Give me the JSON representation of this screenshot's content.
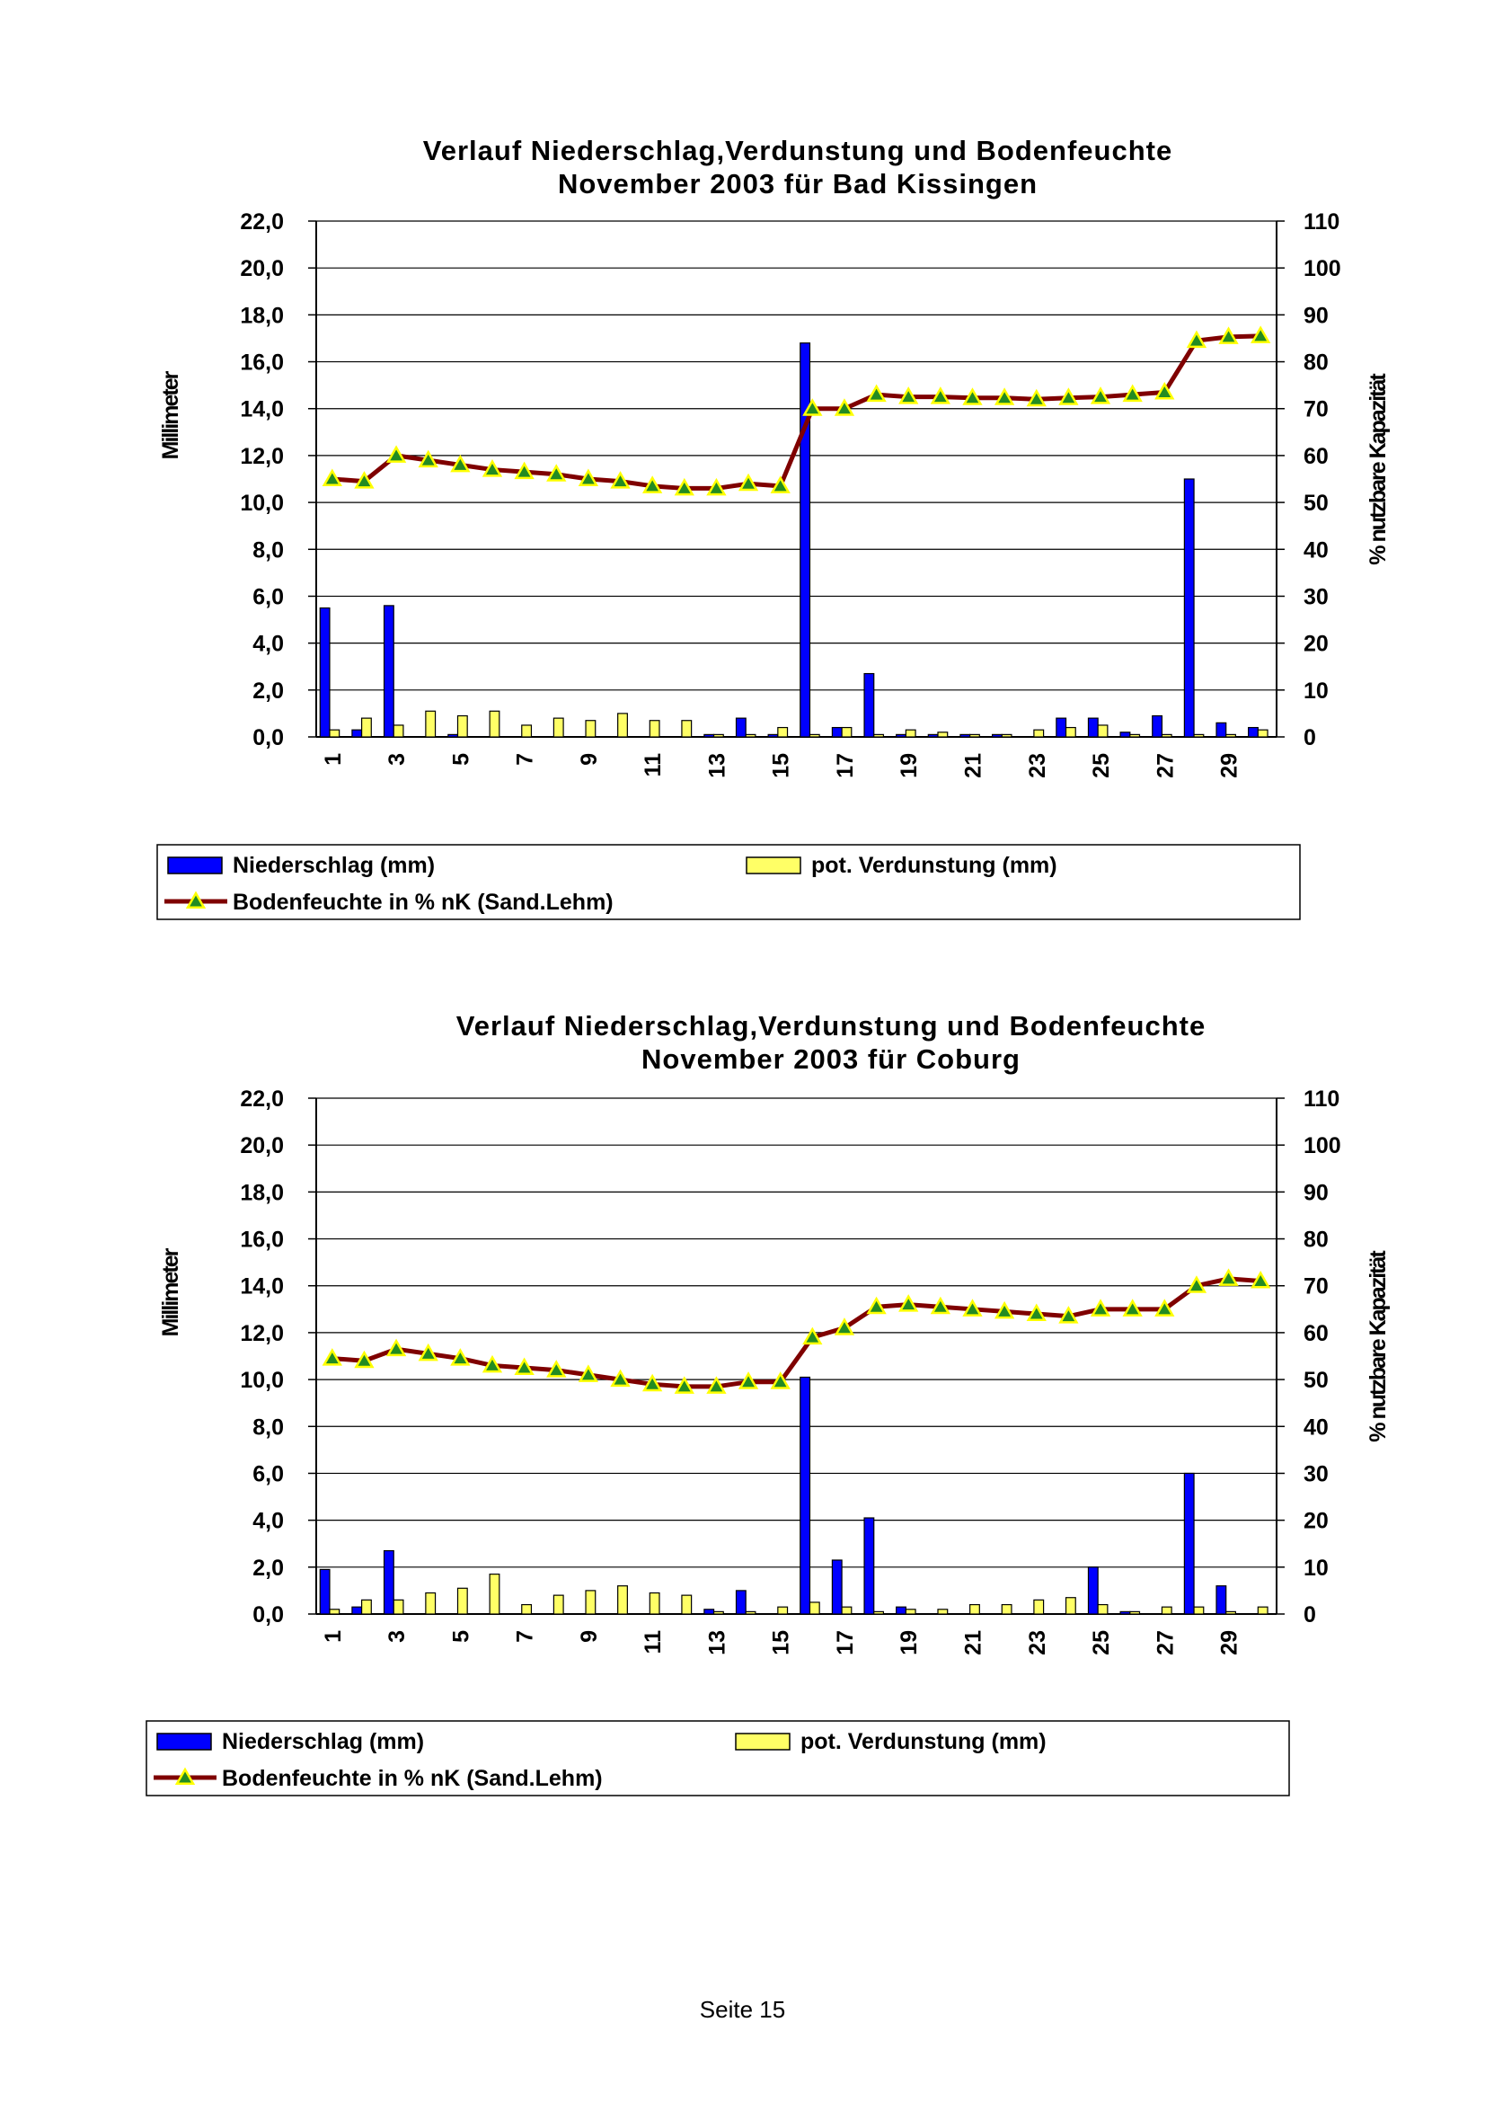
{
  "page": {
    "footer": "Seite 15"
  },
  "colors": {
    "precip": "#0000ff",
    "evap": "#ffff66",
    "moisture_line": "#7f0000",
    "marker_fill": "#228b22",
    "marker_edge": "#ffff00",
    "grid": "#000000"
  },
  "chart_data": [
    {
      "type": "bar",
      "title": [
        "Verlauf Niederschlag,Verdunstung und Bodenfeuchte",
        "November  2003 für Bad Kissingen"
      ],
      "ylabel": "Millimeter",
      "y2label": "% nutzbare Kapazität",
      "ylim": [
        0,
        22
      ],
      "y2lim": [
        0,
        110
      ],
      "yticks": [
        "0,0",
        "2,0",
        "4,0",
        "6,0",
        "8,0",
        "10,0",
        "12,0",
        "14,0",
        "16,0",
        "18,0",
        "20,0",
        "22,0"
      ],
      "y2ticks": [
        "0",
        "10",
        "20",
        "30",
        "40",
        "50",
        "60",
        "70",
        "80",
        "90",
        "100",
        "110"
      ],
      "grid": true,
      "legend_position": "bottom",
      "x": [
        1,
        2,
        3,
        4,
        5,
        6,
        7,
        8,
        9,
        10,
        11,
        12,
        13,
        14,
        15,
        16,
        17,
        18,
        19,
        20,
        21,
        22,
        23,
        24,
        25,
        26,
        27,
        28,
        29,
        30
      ],
      "xtick_labels": [
        "1",
        "3",
        "5",
        "7",
        "9",
        "11",
        "13",
        "15",
        "17",
        "19",
        "21",
        "23",
        "25",
        "27",
        "29"
      ],
      "series": [
        {
          "name": "Niederschlag (mm)",
          "kind": "bar",
          "axis": "left",
          "values": [
            5.5,
            0.3,
            5.6,
            0,
            0.1,
            0,
            0,
            0,
            0,
            0,
            0,
            0,
            0.1,
            0.8,
            0.1,
            16.8,
            0.4,
            2.7,
            0.1,
            0.1,
            0.1,
            0.1,
            0,
            0.8,
            0.8,
            0.2,
            0.9,
            11.0,
            0.6,
            0.4
          ]
        },
        {
          "name": "pot. Verdunstung (mm)",
          "kind": "bar",
          "axis": "left",
          "values": [
            0.3,
            0.8,
            0.5,
            1.1,
            0.9,
            1.1,
            0.5,
            0.8,
            0.7,
            1.0,
            0.7,
            0.7,
            0.1,
            0.1,
            0.4,
            0.1,
            0.4,
            0.1,
            0.3,
            0.2,
            0.1,
            0.1,
            0.3,
            0.4,
            0.5,
            0.1,
            0.1,
            0.1,
            0.1,
            0.3
          ]
        },
        {
          "name": "Bodenfeuchte in % nK (Sand.Lehm)",
          "kind": "line",
          "axis": "right",
          "values": [
            55,
            54.5,
            60,
            59,
            58,
            57,
            56.5,
            56,
            55,
            54.5,
            53.5,
            53,
            53,
            54,
            53.5,
            70,
            70,
            73,
            72.5,
            72.5,
            72.3,
            72.3,
            72,
            72.3,
            72.5,
            73,
            73.5,
            84.5,
            85.3,
            85.5
          ]
        }
      ]
    },
    {
      "type": "bar",
      "title": [
        "Verlauf Niederschlag,Verdunstung und Bodenfeuchte",
        "November 2003 für Coburg"
      ],
      "ylabel": "Millimeter",
      "y2label": "% nutzbare Kapazität",
      "ylim": [
        0,
        22
      ],
      "y2lim": [
        0,
        110
      ],
      "yticks": [
        "0,0",
        "2,0",
        "4,0",
        "6,0",
        "8,0",
        "10,0",
        "12,0",
        "14,0",
        "16,0",
        "18,0",
        "20,0",
        "22,0"
      ],
      "y2ticks": [
        "0",
        "10",
        "20",
        "30",
        "40",
        "50",
        "60",
        "70",
        "80",
        "90",
        "100",
        "110"
      ],
      "grid": true,
      "legend_position": "bottom",
      "x": [
        1,
        2,
        3,
        4,
        5,
        6,
        7,
        8,
        9,
        10,
        11,
        12,
        13,
        14,
        15,
        16,
        17,
        18,
        19,
        20,
        21,
        22,
        23,
        24,
        25,
        26,
        27,
        28,
        29,
        30
      ],
      "xtick_labels": [
        "1",
        "3",
        "5",
        "7",
        "9",
        "11",
        "13",
        "15",
        "17",
        "19",
        "21",
        "23",
        "25",
        "27",
        "29"
      ],
      "series": [
        {
          "name": "Niederschlag (mm)",
          "kind": "bar",
          "axis": "left",
          "values": [
            1.9,
            0.3,
            2.7,
            0,
            0,
            0,
            0,
            0,
            0,
            0,
            0,
            0,
            0.2,
            1.0,
            0,
            10.1,
            2.3,
            4.1,
            0.3,
            0,
            0,
            0,
            0,
            0,
            2.0,
            0.1,
            0,
            6.0,
            1.2,
            0
          ]
        },
        {
          "name": "pot. Verdunstung (mm)",
          "kind": "bar",
          "axis": "left",
          "values": [
            0.2,
            0.6,
            0.6,
            0.9,
            1.1,
            1.7,
            0.4,
            0.8,
            1.0,
            1.2,
            0.9,
            0.8,
            0.1,
            0.1,
            0.3,
            0.5,
            0.3,
            0.1,
            0.2,
            0.2,
            0.4,
            0.4,
            0.6,
            0.7,
            0.4,
            0.1,
            0.3,
            0.3,
            0.1,
            0.3
          ]
        },
        {
          "name": "Bodenfeuchte in % nK (Sand.Lehm)",
          "kind": "line",
          "axis": "right",
          "values": [
            54.5,
            54,
            56.5,
            55.5,
            54.5,
            53,
            52.5,
            52,
            51,
            50,
            49,
            48.5,
            48.5,
            49.5,
            49.5,
            59,
            61,
            65.5,
            66,
            65.5,
            65,
            64.5,
            64,
            63.5,
            65,
            65,
            65,
            70,
            71.5,
            71
          ]
        }
      ]
    }
  ]
}
